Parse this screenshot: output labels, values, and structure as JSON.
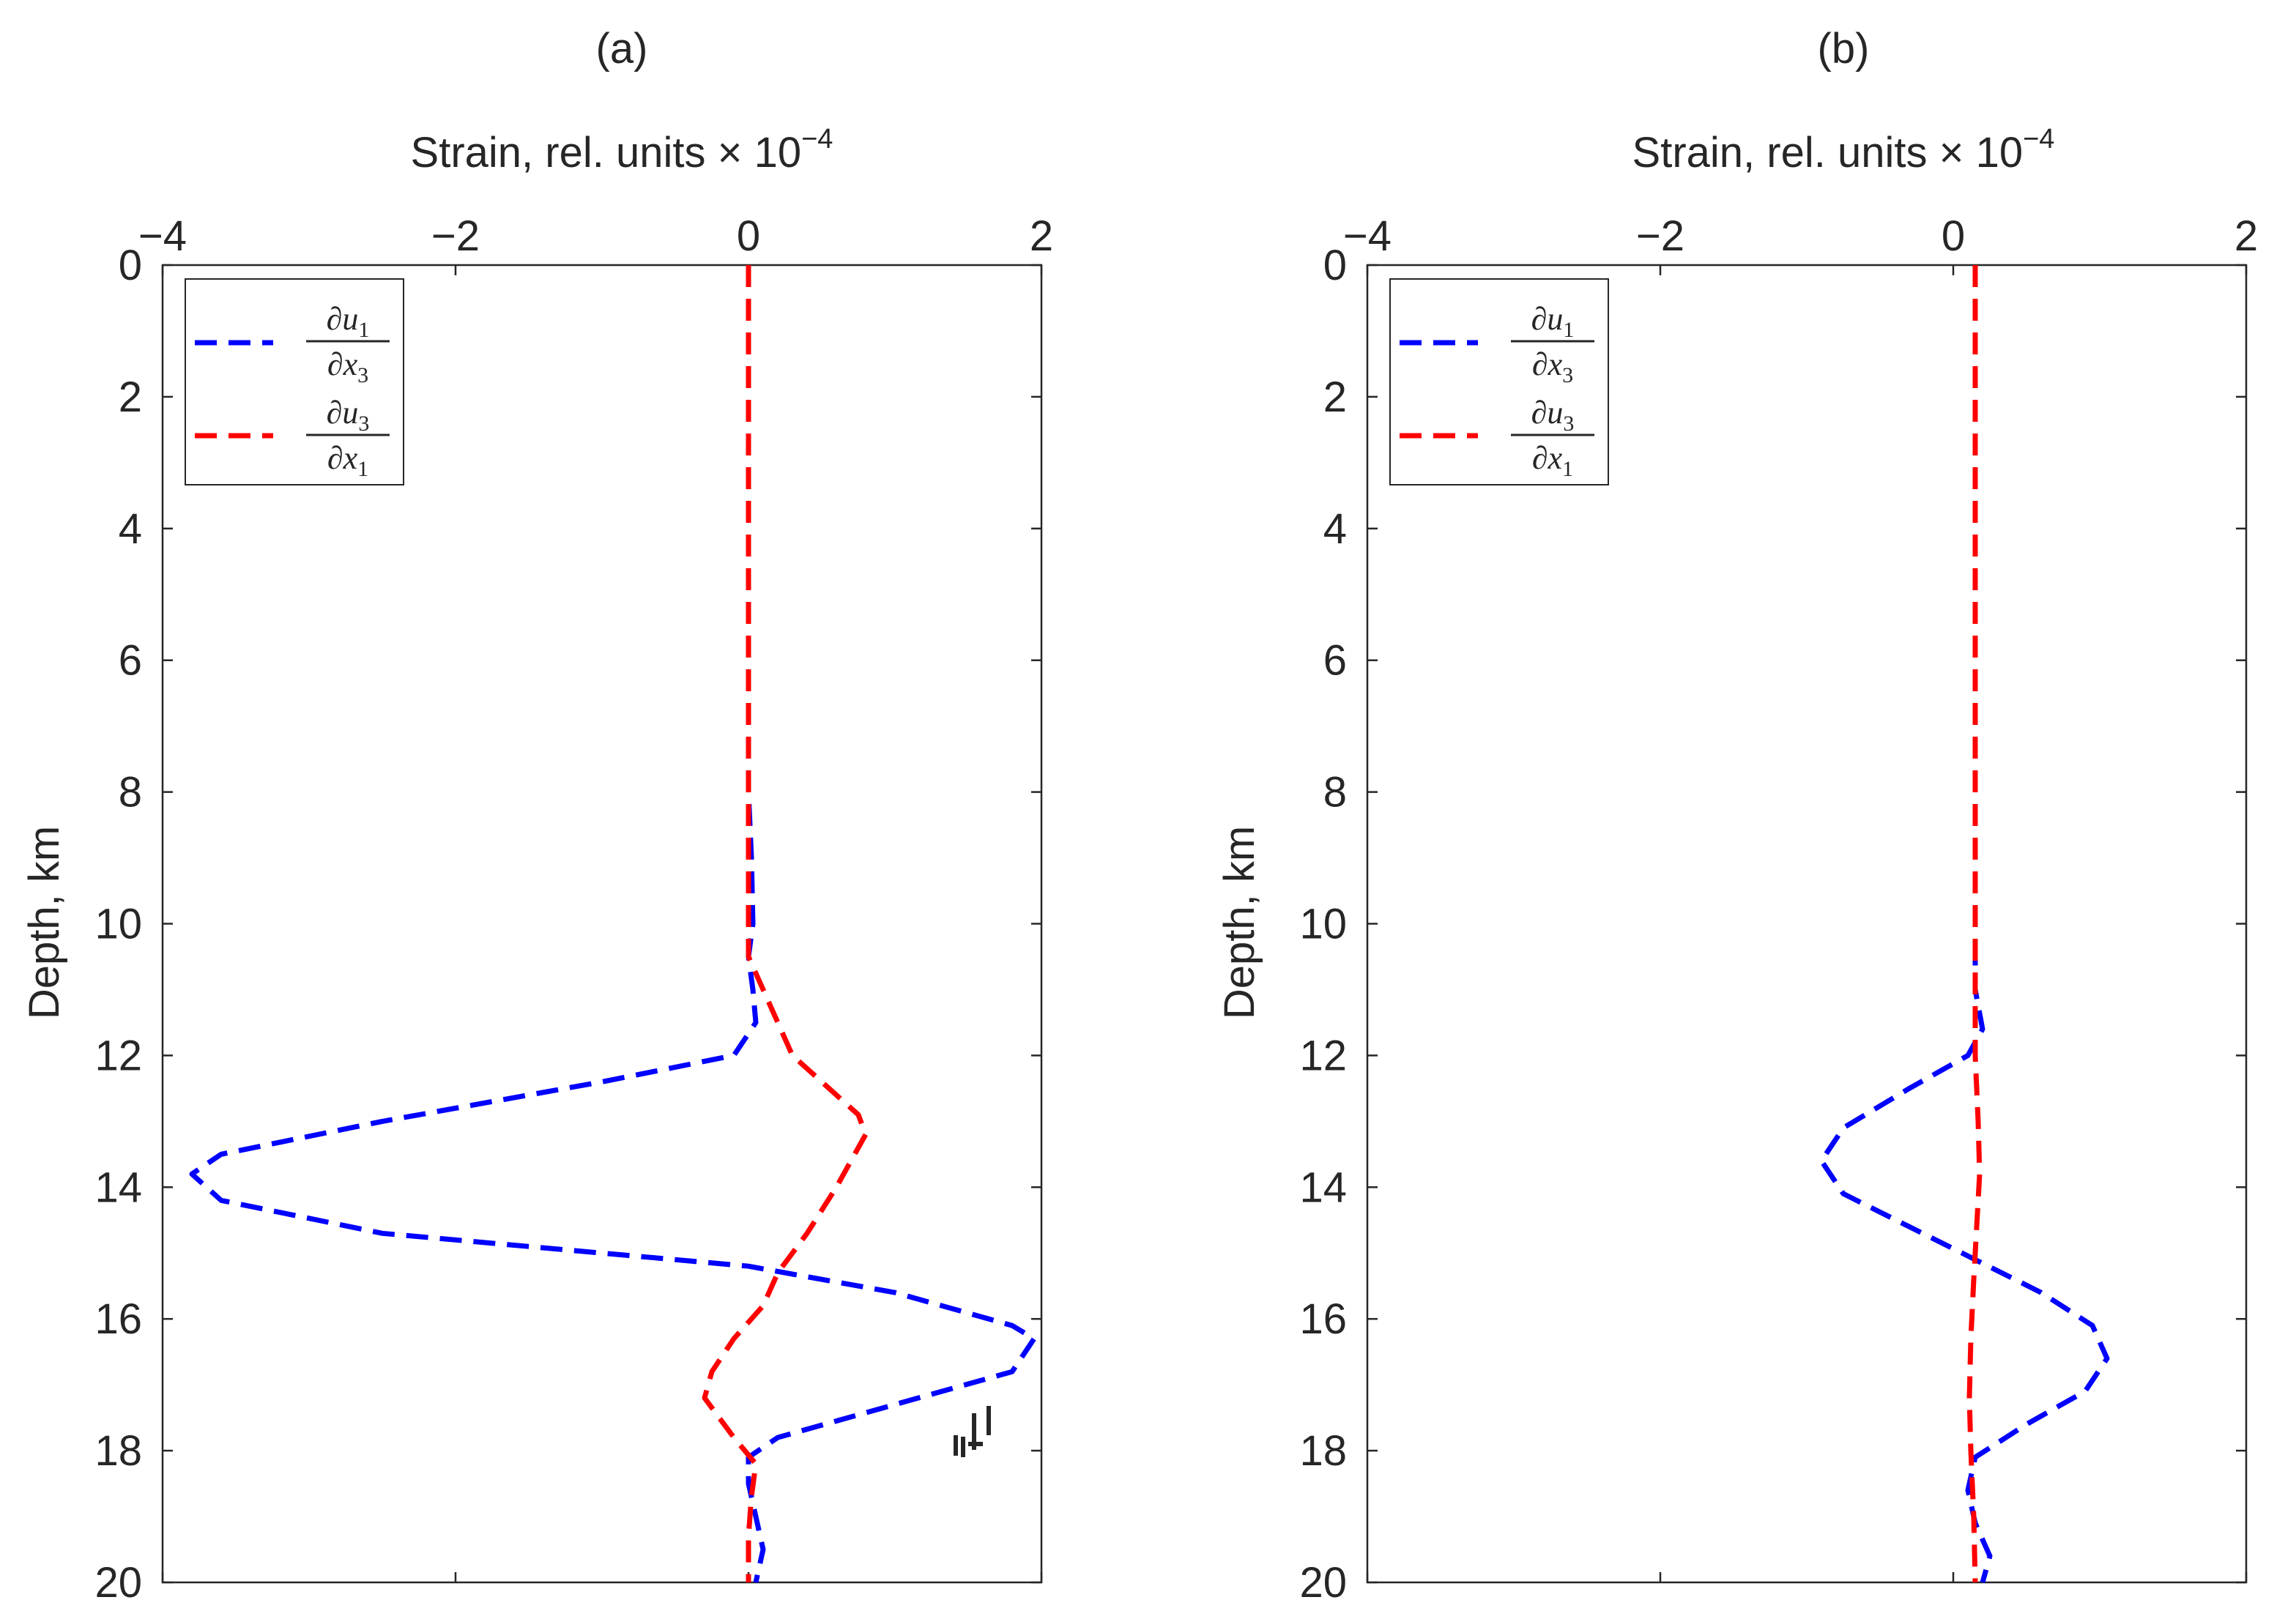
{
  "chart_data": [
    {
      "type": "line",
      "panel_title": "(a)",
      "xlabel": "Strain, rel. units × 10",
      "xlabel_exp": "−4",
      "ylabel": "Depth, km",
      "xlim": [
        -4,
        2
      ],
      "ylim": [
        0,
        20
      ],
      "y_reversed": true,
      "x_axis_location": "top",
      "xticks": [
        -4,
        -2,
        0,
        2
      ],
      "xtick_labels": [
        "−4",
        "−2",
        "0",
        "2"
      ],
      "yticks": [
        0,
        2,
        4,
        6,
        8,
        10,
        12,
        14,
        16,
        18,
        20
      ],
      "ytick_labels": [
        "0",
        "2",
        "4",
        "6",
        "8",
        "10",
        "12",
        "14",
        "16",
        "18",
        "20"
      ],
      "legend": {
        "location": "top-left",
        "entries": [
          {
            "num_var": "∂u",
            "num_sub": "1",
            "den_var": "∂x",
            "den_sub": "3"
          },
          {
            "num_var": "∂u",
            "num_sub": "3",
            "den_var": "∂x",
            "den_sub": "1"
          }
        ]
      },
      "series": [
        {
          "name": "∂u1/∂x3",
          "color": "#0000ff",
          "style": "dashed",
          "points": [
            [
              0.0,
              0
            ],
            [
              0.0,
              2
            ],
            [
              0.0,
              4
            ],
            [
              0.0,
              6
            ],
            [
              0.0,
              8
            ],
            [
              0.02,
              9
            ],
            [
              0.03,
              10
            ],
            [
              0.0,
              10.5
            ],
            [
              0.03,
              11.0
            ],
            [
              0.05,
              11.5
            ],
            [
              -0.1,
              12.0
            ],
            [
              -1.0,
              12.4
            ],
            [
              -2.5,
              13.0
            ],
            [
              -3.6,
              13.5
            ],
            [
              -3.8,
              13.8
            ],
            [
              -3.6,
              14.2
            ],
            [
              -2.5,
              14.7
            ],
            [
              -1.0,
              15.0
            ],
            [
              0.0,
              15.2
            ],
            [
              1.0,
              15.6
            ],
            [
              1.8,
              16.1
            ],
            [
              1.95,
              16.3
            ],
            [
              1.8,
              16.8
            ],
            [
              1.0,
              17.3
            ],
            [
              0.2,
              17.8
            ],
            [
              0.0,
              18.1
            ],
            [
              0.0,
              18.5
            ],
            [
              0.05,
              19.0
            ],
            [
              0.1,
              19.5
            ],
            [
              0.05,
              20.0
            ]
          ]
        },
        {
          "name": "∂u3/∂x1",
          "color": "#ff0000",
          "style": "dashed",
          "points": [
            [
              0.0,
              0
            ],
            [
              0.0,
              2
            ],
            [
              0.0,
              4
            ],
            [
              0.0,
              6
            ],
            [
              0.0,
              8
            ],
            [
              0.0,
              10
            ],
            [
              0.0,
              10.5
            ],
            [
              0.1,
              11.0
            ],
            [
              0.2,
              11.5
            ],
            [
              0.3,
              12.0
            ],
            [
              0.5,
              12.4
            ],
            [
              0.75,
              12.9
            ],
            [
              0.8,
              13.2
            ],
            [
              0.6,
              14.0
            ],
            [
              0.4,
              14.7
            ],
            [
              0.2,
              15.3
            ],
            [
              0.1,
              15.8
            ],
            [
              -0.1,
              16.3
            ],
            [
              -0.25,
              16.8
            ],
            [
              -0.3,
              17.2
            ],
            [
              -0.1,
              17.8
            ],
            [
              0.05,
              18.2
            ],
            [
              0.02,
              18.7
            ],
            [
              0.0,
              19.3
            ],
            [
              0.0,
              20.0
            ]
          ]
        }
      ],
      "annotations": [
        {
          "text": "tick-like marks near (1.6, 17.6)",
          "x": 1.6,
          "y": 17.6
        }
      ]
    },
    {
      "type": "line",
      "panel_title": "(b)",
      "xlabel": "Strain, rel. units × 10",
      "xlabel_exp": "−4",
      "ylabel": "Depth, km",
      "xlim": [
        -4,
        2
      ],
      "ylim": [
        0,
        20
      ],
      "y_reversed": true,
      "x_axis_location": "top",
      "xticks": [
        -4,
        -2,
        0,
        2
      ],
      "xtick_labels": [
        "−4",
        "−2",
        "0",
        "2"
      ],
      "yticks": [
        0,
        2,
        4,
        6,
        8,
        10,
        12,
        14,
        16,
        18,
        20
      ],
      "ytick_labels": [
        "0",
        "2",
        "4",
        "6",
        "8",
        "10",
        "12",
        "14",
        "16",
        "18",
        "20"
      ],
      "legend": {
        "location": "top-left",
        "entries": [
          {
            "num_var": "∂u",
            "num_sub": "1",
            "den_var": "∂x",
            "den_sub": "3"
          },
          {
            "num_var": "∂u",
            "num_sub": "3",
            "den_var": "∂x",
            "den_sub": "1"
          }
        ]
      },
      "series": [
        {
          "name": "∂u1/∂x3",
          "color": "#0000ff",
          "style": "dashed",
          "points": [
            [
              0.15,
              10.3
            ],
            [
              0.15,
              11.0
            ],
            [
              0.2,
              11.6
            ],
            [
              0.1,
              12.0
            ],
            [
              -0.3,
              12.5
            ],
            [
              -0.75,
              13.1
            ],
            [
              -0.9,
              13.6
            ],
            [
              -0.75,
              14.1
            ],
            [
              -0.3,
              14.6
            ],
            [
              0.15,
              15.1
            ],
            [
              0.6,
              15.6
            ],
            [
              0.95,
              16.1
            ],
            [
              1.05,
              16.6
            ],
            [
              0.9,
              17.1
            ],
            [
              0.5,
              17.6
            ],
            [
              0.15,
              18.1
            ],
            [
              0.1,
              18.6
            ],
            [
              0.15,
              19.1
            ],
            [
              0.25,
              19.6
            ],
            [
              0.2,
              20.0
            ]
          ]
        },
        {
          "name": "∂u3/∂x1",
          "color": "#ff0000",
          "style": "dashed",
          "points": [
            [
              0.15,
              0
            ],
            [
              0.15,
              2
            ],
            [
              0.15,
              4
            ],
            [
              0.15,
              6
            ],
            [
              0.15,
              8
            ],
            [
              0.15,
              10
            ],
            [
              0.15,
              11.0
            ],
            [
              0.15,
              12.0
            ],
            [
              0.17,
              13.0
            ],
            [
              0.18,
              13.8
            ],
            [
              0.16,
              14.6
            ],
            [
              0.14,
              15.4
            ],
            [
              0.12,
              16.3
            ],
            [
              0.11,
              17.2
            ],
            [
              0.12,
              18.0
            ],
            [
              0.14,
              19.0
            ],
            [
              0.15,
              20.0
            ]
          ]
        }
      ]
    }
  ]
}
